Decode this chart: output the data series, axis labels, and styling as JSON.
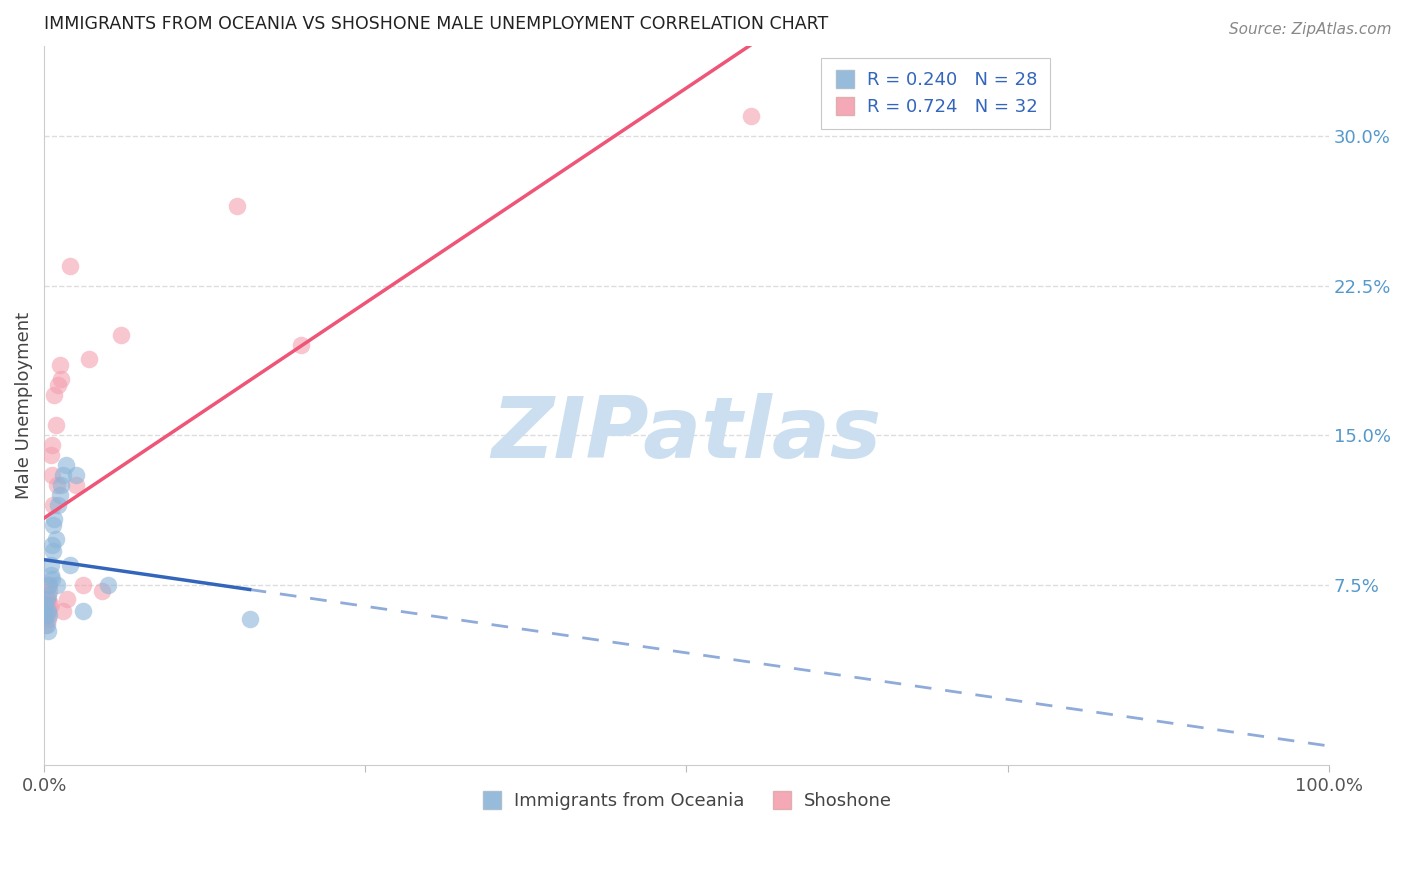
{
  "title": "IMMIGRANTS FROM OCEANIA VS SHOSHONE MALE UNEMPLOYMENT CORRELATION CHART",
  "source": "Source: ZipAtlas.com",
  "ylabel": "Male Unemployment",
  "xlim": [
    0,
    1.0
  ],
  "ylim": [
    -0.015,
    0.345
  ],
  "ytick_values": [
    0.0,
    0.075,
    0.15,
    0.225,
    0.3
  ],
  "ytick_labels": [
    "",
    "7.5%",
    "15.0%",
    "22.5%",
    "30.0%"
  ],
  "xtick_values": [
    0.0,
    0.25,
    0.5,
    0.75,
    1.0
  ],
  "xtick_labels": [
    "0.0%",
    "",
    "",
    "",
    "100.0%"
  ],
  "legend_r_blue": "0.240",
  "legend_n_blue": "28",
  "legend_r_pink": "0.724",
  "legend_n_pink": "32",
  "legend_label_blue": "Immigrants from Oceania",
  "legend_label_pink": "Shoshone",
  "color_blue_fill": "#8BB4D8",
  "color_pink_fill": "#F4A0B0",
  "color_blue_line": "#3366BB",
  "color_pink_line": "#EE5577",
  "color_right_axis": "#5599CC",
  "background_color": "#FFFFFF",
  "grid_color": "#DDDDDD",
  "blue_x": [
    0.001,
    0.001,
    0.002,
    0.002,
    0.003,
    0.003,
    0.003,
    0.004,
    0.004,
    0.005,
    0.005,
    0.006,
    0.006,
    0.007,
    0.007,
    0.008,
    0.009,
    0.01,
    0.011,
    0.012,
    0.013,
    0.015,
    0.017,
    0.02,
    0.025,
    0.03,
    0.16,
    0.05
  ],
  "blue_y": [
    0.06,
    0.065,
    0.055,
    0.068,
    0.062,
    0.07,
    0.052,
    0.075,
    0.06,
    0.08,
    0.085,
    0.078,
    0.095,
    0.105,
    0.092,
    0.108,
    0.098,
    0.075,
    0.115,
    0.12,
    0.125,
    0.13,
    0.135,
    0.085,
    0.13,
    0.062,
    0.058,
    0.075
  ],
  "pink_x": [
    0.001,
    0.001,
    0.001,
    0.002,
    0.002,
    0.003,
    0.003,
    0.003,
    0.004,
    0.004,
    0.005,
    0.005,
    0.006,
    0.006,
    0.007,
    0.008,
    0.009,
    0.01,
    0.011,
    0.012,
    0.013,
    0.015,
    0.018,
    0.02,
    0.025,
    0.03,
    0.035,
    0.045,
    0.06,
    0.15,
    0.2,
    0.55
  ],
  "pink_y": [
    0.055,
    0.06,
    0.065,
    0.06,
    0.065,
    0.058,
    0.068,
    0.075,
    0.065,
    0.072,
    0.065,
    0.14,
    0.13,
    0.145,
    0.115,
    0.17,
    0.155,
    0.125,
    0.175,
    0.185,
    0.178,
    0.062,
    0.068,
    0.235,
    0.125,
    0.075,
    0.188,
    0.072,
    0.2,
    0.265,
    0.195,
    0.31
  ],
  "blue_line_x_end": 0.16,
  "pink_line_x_end": 0.55,
  "watermark_text": "ZIPatlas"
}
